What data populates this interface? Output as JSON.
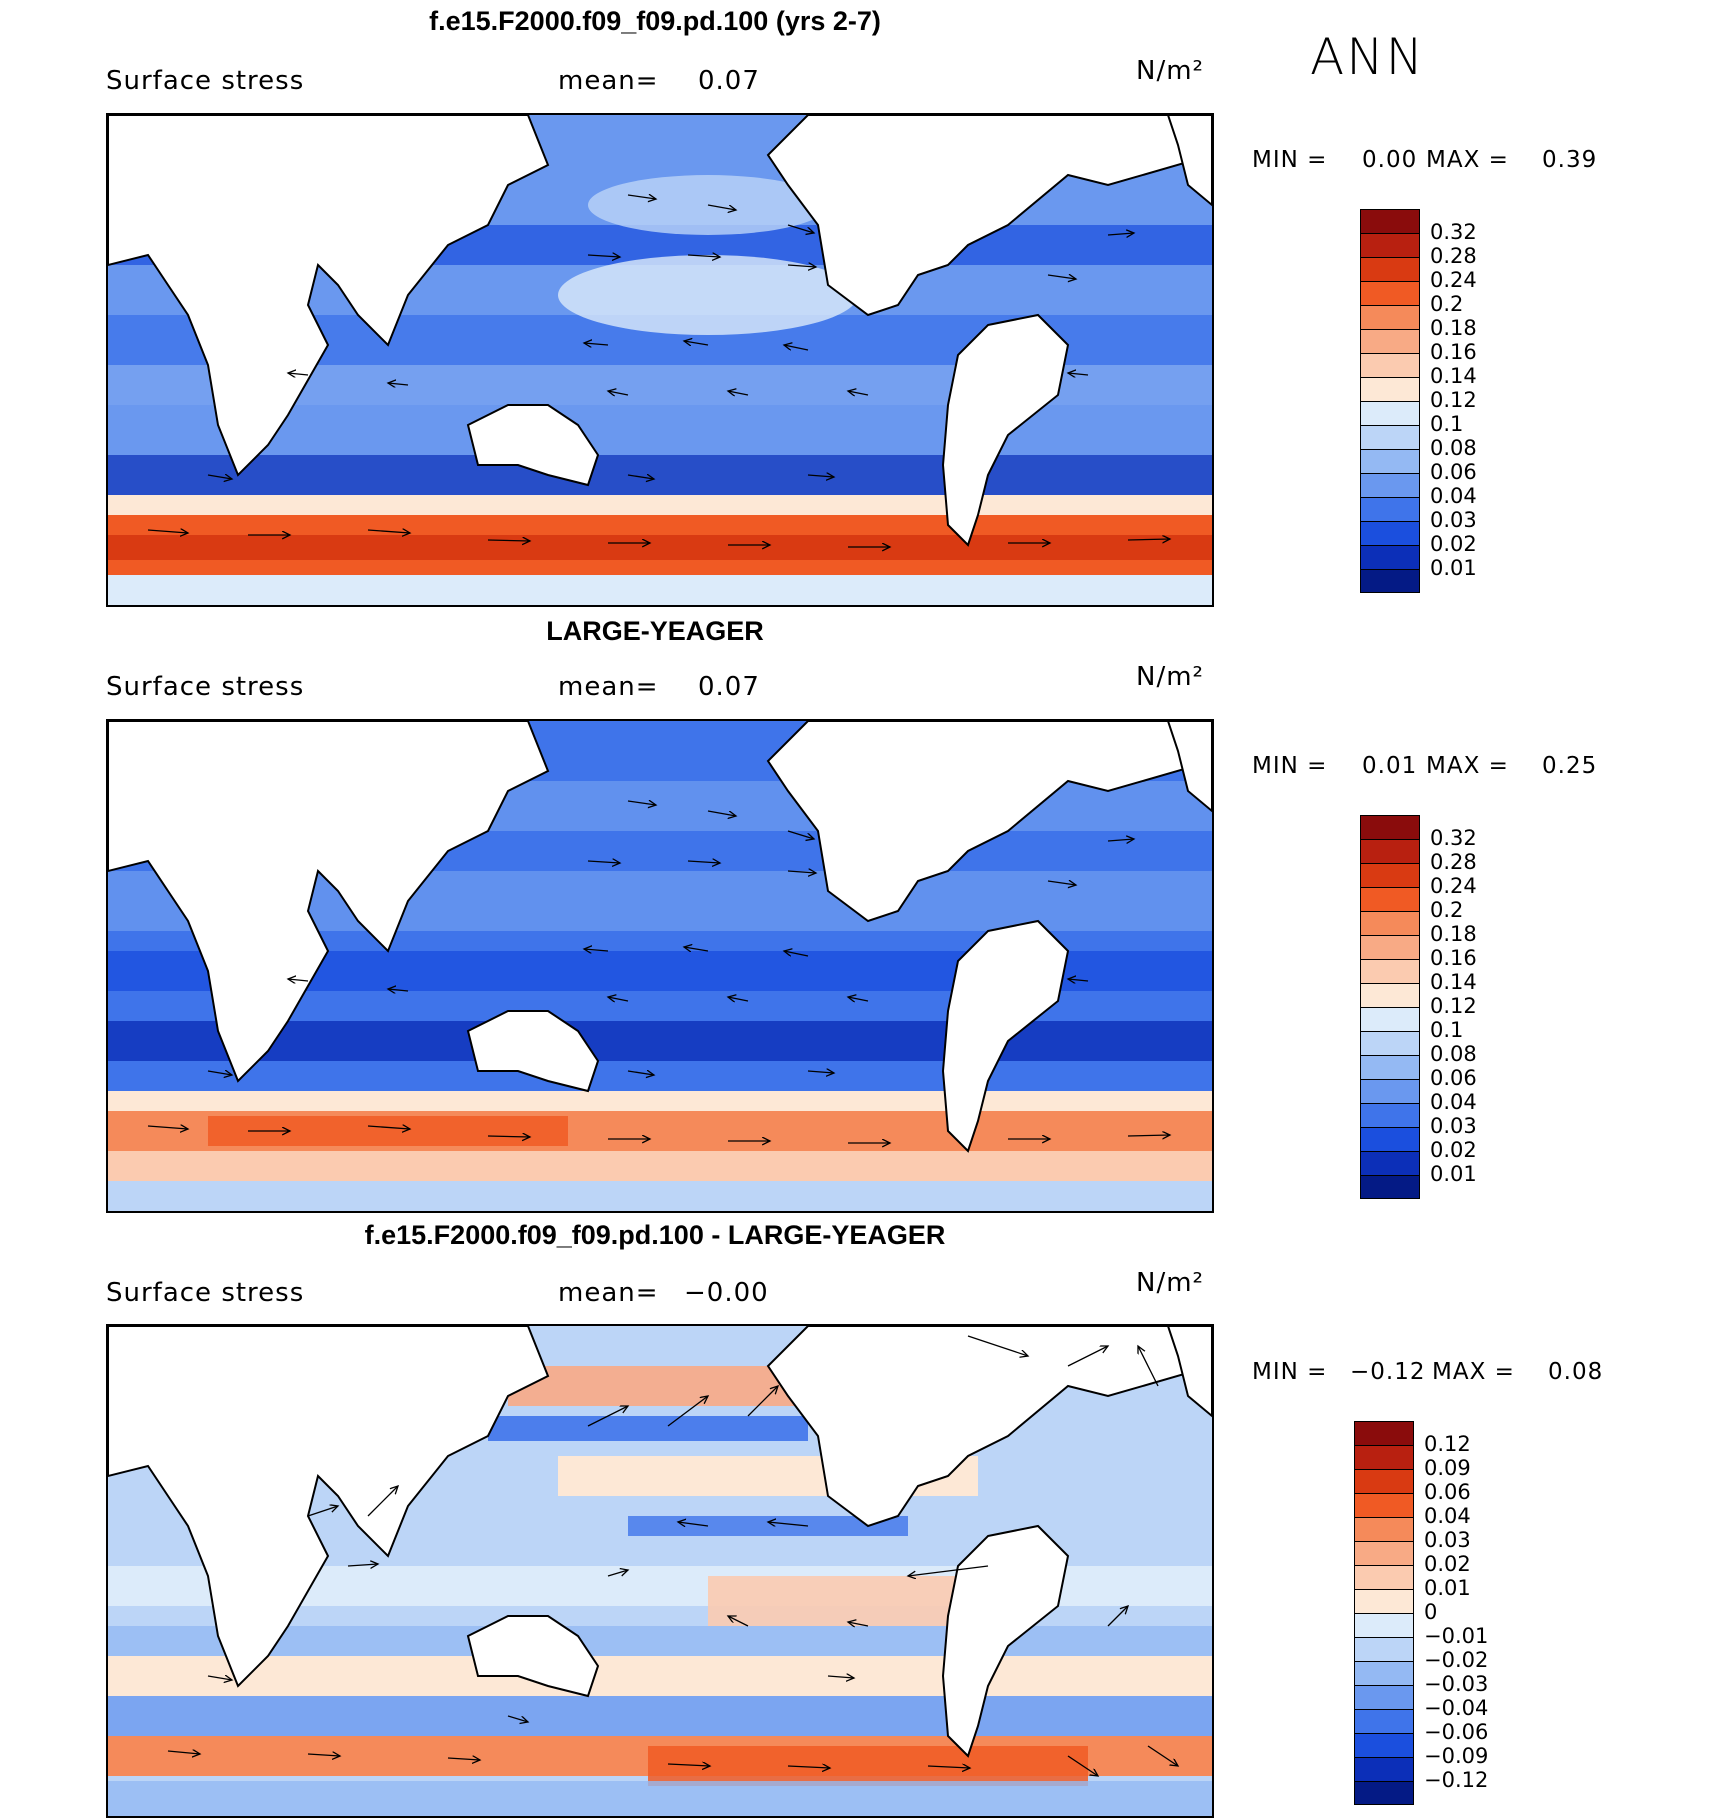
{
  "season": "ANN",
  "panels": [
    {
      "title": "f.e15.F2000.f09_f09.pd.100 (yrs 2-7)",
      "variable": "Surface stress",
      "mean_label": "mean=",
      "mean_value": "0.07",
      "units": "N/m²",
      "min_label": "MIN =",
      "min_value": "0.00",
      "max_label": "MAX =",
      "max_value": "0.39",
      "colorbar": {
        "labels": [
          "0.32",
          "0.28",
          "0.24",
          "0.2",
          "0.18",
          "0.16",
          "0.14",
          "0.12",
          "0.1",
          "0.08",
          "0.06",
          "0.04",
          "0.03",
          "0.02",
          "0.01"
        ],
        "colors": [
          "#8a0c0c",
          "#b82010",
          "#d93a12",
          "#f05a24",
          "#f58a5a",
          "#f8aa85",
          "#fbcbb0",
          "#fde8d6",
          "#dcebfa",
          "#bcd5f7",
          "#94b9f3",
          "#6a98ef",
          "#3f74ea",
          "#1b4fde",
          "#0c2fb8",
          "#041a85"
        ]
      }
    },
    {
      "title": "LARGE-YEAGER",
      "variable": "Surface stress",
      "mean_label": "mean=",
      "mean_value": "0.07",
      "units": "N/m²",
      "min_label": "MIN =",
      "min_value": "0.01",
      "max_label": "MAX =",
      "max_value": "0.25",
      "colorbar": {
        "labels": [
          "0.32",
          "0.28",
          "0.24",
          "0.2",
          "0.18",
          "0.16",
          "0.14",
          "0.12",
          "0.1",
          "0.08",
          "0.06",
          "0.04",
          "0.03",
          "0.02",
          "0.01"
        ],
        "colors": [
          "#8a0c0c",
          "#b82010",
          "#d93a12",
          "#f05a24",
          "#f58a5a",
          "#f8aa85",
          "#fbcbb0",
          "#fde8d6",
          "#dcebfa",
          "#bcd5f7",
          "#94b9f3",
          "#6a98ef",
          "#3f74ea",
          "#1b4fde",
          "#0c2fb8",
          "#041a85"
        ]
      }
    },
    {
      "title": "f.e15.F2000.f09_f09.pd.100 - LARGE-YEAGER",
      "variable": "Surface stress",
      "mean_label": "mean=",
      "mean_value": "−0.00",
      "units": "N/m²",
      "min_label": "MIN =",
      "min_value": "−0.12",
      "max_label": "MAX =",
      "max_value": "0.08",
      "colorbar": {
        "labels": [
          "0.12",
          "0.09",
          "0.06",
          "0.04",
          "0.03",
          "0.02",
          "0.01",
          "0",
          "−0.01",
          "−0.02",
          "−0.03",
          "−0.04",
          "−0.06",
          "−0.09",
          "−0.12"
        ],
        "colors": [
          "#8a0c0c",
          "#b82010",
          "#d93a12",
          "#f05a24",
          "#f58a5a",
          "#f8aa85",
          "#fbcbb0",
          "#fde8d6",
          "#dcebfa",
          "#bcd5f7",
          "#94b9f3",
          "#6a98ef",
          "#3f74ea",
          "#1b4fde",
          "#0c2fb8",
          "#041a85"
        ]
      }
    }
  ]
}
